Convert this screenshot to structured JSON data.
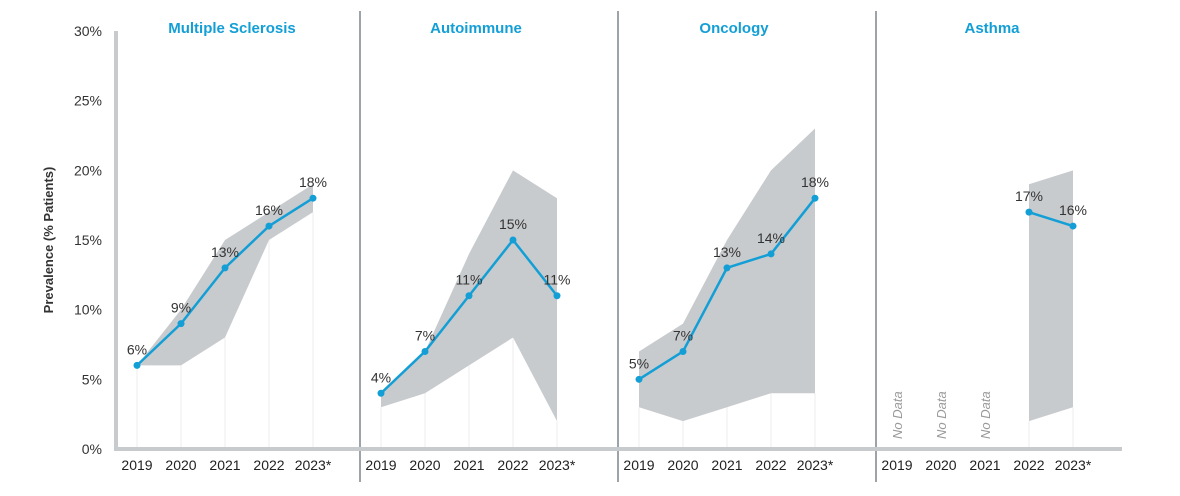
{
  "chart_data": {
    "type": "line",
    "ylabel": "Prevalence (% Patients)",
    "ylim": [
      0,
      30
    ],
    "yticks": [
      "0%",
      "5%",
      "10%",
      "15%",
      "20%",
      "25%",
      "30%"
    ],
    "grid": false,
    "colors": {
      "line": "#139fd6",
      "range_band": "#c8cbce",
      "title": "#139fd6",
      "axis": "#c7cbce",
      "divider": "#5b6770",
      "no_data_text": "#9a9a9a"
    },
    "panels": [
      {
        "title": "Multiple Sclerosis",
        "categories": [
          "2019",
          "2020",
          "2021",
          "2022",
          "2023*"
        ],
        "values": [
          6,
          9,
          13,
          16,
          18
        ],
        "labels": [
          "6%",
          "9%",
          "13%",
          "16%",
          "18%"
        ],
        "range_low": [
          6,
          6,
          8,
          15,
          17
        ],
        "range_high": [
          6,
          10,
          15,
          17,
          19
        ],
        "no_data": [
          false,
          false,
          false,
          false,
          false
        ]
      },
      {
        "title": "Autoimmune",
        "categories": [
          "2019",
          "2020",
          "2021",
          "2022",
          "2023*"
        ],
        "values": [
          4,
          7,
          11,
          15,
          11
        ],
        "labels": [
          "4%",
          "7%",
          "11%",
          "15%",
          "11%"
        ],
        "range_low": [
          3,
          4,
          6,
          8,
          2
        ],
        "range_high": [
          4,
          7,
          14,
          20,
          18
        ],
        "no_data": [
          false,
          false,
          false,
          false,
          false
        ]
      },
      {
        "title": "Oncology",
        "categories": [
          "2019",
          "2020",
          "2021",
          "2022",
          "2023*"
        ],
        "values": [
          5,
          7,
          13,
          14,
          18
        ],
        "labels": [
          "5%",
          "7%",
          "13%",
          "14%",
          "18%"
        ],
        "range_low": [
          3,
          2,
          3,
          4,
          4
        ],
        "range_high": [
          7,
          9,
          15,
          20,
          23
        ],
        "no_data": [
          false,
          false,
          false,
          false,
          false
        ]
      },
      {
        "title": "Asthma",
        "categories": [
          "2019",
          "2020",
          "2021",
          "2022",
          "2023*"
        ],
        "values": [
          null,
          null,
          null,
          17,
          16
        ],
        "labels": [
          "",
          "",
          "",
          "17%",
          "16%"
        ],
        "range_low": [
          null,
          null,
          null,
          2,
          3
        ],
        "range_high": [
          null,
          null,
          null,
          19,
          20
        ],
        "no_data": [
          true,
          true,
          true,
          false,
          false
        ],
        "no_data_label": "No Data"
      }
    ]
  }
}
